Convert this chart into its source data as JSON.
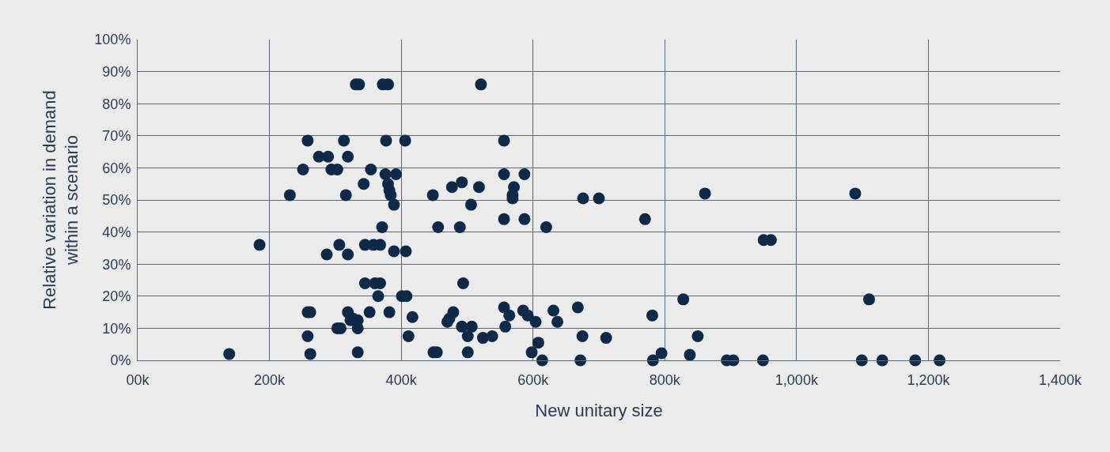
{
  "chart_data": {
    "type": "scatter",
    "xlabel": "New unitary size",
    "ylabel": "Relative variation in demand\nwithin a scenario",
    "marker": "circle",
    "grid": true,
    "xlim": [
      0,
      1400000
    ],
    "xticks": [
      {
        "value": 0,
        "label": "00k"
      },
      {
        "value": 200000,
        "label": "200k"
      },
      {
        "value": 400000,
        "label": "400k"
      },
      {
        "value": 600000,
        "label": "600k"
      },
      {
        "value": 800000,
        "label": "800k"
      },
      {
        "value": 1000000,
        "label": "1,000k"
      },
      {
        "value": 1200000,
        "label": "1,200k"
      },
      {
        "value": 1400000,
        "label": "1,400k"
      }
    ],
    "ylim": [
      0,
      100
    ],
    "yticks": [
      {
        "value": 0,
        "label": "0%"
      },
      {
        "value": 10,
        "label": "10%"
      },
      {
        "value": 20,
        "label": "20%"
      },
      {
        "value": 30,
        "label": "30%"
      },
      {
        "value": 40,
        "label": "40%"
      },
      {
        "value": 50,
        "label": "50%"
      },
      {
        "value": 60,
        "label": "60%"
      },
      {
        "value": 70,
        "label": "70%"
      },
      {
        "value": 80,
        "label": "80%"
      },
      {
        "value": 90,
        "label": "90%"
      },
      {
        "value": 100,
        "label": "100%"
      }
    ],
    "series": [
      {
        "color": "#0f2a48",
        "x": [
          139000,
          185000,
          231000,
          251000,
          258000,
          258000,
          258000,
          262000,
          262000,
          275000,
          289000,
          287000,
          294000,
          303000,
          306000,
          303000,
          308000,
          313000,
          316000,
          319000,
          319000,
          319000,
          323000,
          327000,
          331000,
          336000,
          334000,
          334000,
          334000,
          343000,
          345000,
          345000,
          354000,
          352000,
          358000,
          360000,
          368000,
          368000,
          365000,
          371000,
          372000,
          380000,
          377000,
          376000,
          380000,
          382000,
          384000,
          389000,
          389000,
          382000,
          392000,
          401000,
          408000,
          406000,
          407000,
          411000,
          417000,
          448000,
          456000,
          449000,
          454000,
          470000,
          473000,
          479000,
          477000,
          492000,
          489000,
          494000,
          492000,
          501000,
          507000,
          501000,
          506000,
          518000,
          524000,
          538000,
          521000,
          556000,
          556000,
          587000,
          571000,
          569000,
          569000,
          556000,
          587000,
          620000,
          556000,
          564000,
          558000,
          585000,
          592000,
          604000,
          608000,
          598000,
          614000,
          631000,
          637000,
          668000,
          675000,
          672000,
          676000,
          700000,
          770000,
          861000,
          950000,
          961000,
          1089000,
          828000,
          1110000,
          781000,
          711000,
          850000,
          795000,
          838000,
          782000,
          894000,
          904000,
          949000,
          1099000,
          1130000,
          1180000,
          1217000
        ],
        "values": [
          2,
          36,
          51.5,
          59.5,
          68.5,
          7.5,
          15,
          15,
          2,
          63.5,
          63.5,
          33,
          59.5,
          59.5,
          36,
          10,
          10,
          68.5,
          51.5,
          63.5,
          33,
          15,
          12.5,
          13,
          86,
          86,
          2.5,
          10,
          12.5,
          55,
          36,
          24,
          59.5,
          15,
          36,
          24,
          36,
          24,
          20,
          41.5,
          86,
          86,
          68.5,
          58,
          55,
          53,
          51.5,
          48.5,
          34,
          15,
          58,
          20,
          20,
          68.5,
          34,
          7.5,
          13.5,
          51.5,
          41.5,
          2.5,
          2.5,
          12,
          13,
          15,
          54,
          55.5,
          41.5,
          24,
          10.5,
          7.5,
          10.5,
          2.5,
          48.5,
          54,
          7,
          7.5,
          86,
          68.5,
          58,
          58,
          54,
          51.5,
          50.5,
          44,
          44,
          41.5,
          16.5,
          14,
          10.5,
          15.5,
          14,
          12,
          5.5,
          2.5,
          0,
          15.5,
          12,
          16.5,
          7.5,
          0,
          50.5,
          50.5,
          44,
          52,
          37.5,
          37.5,
          52,
          19,
          19,
          14,
          7,
          7.5,
          2.2,
          1.7,
          0,
          0,
          0,
          0,
          0,
          0,
          0,
          0
        ]
      }
    ]
  }
}
